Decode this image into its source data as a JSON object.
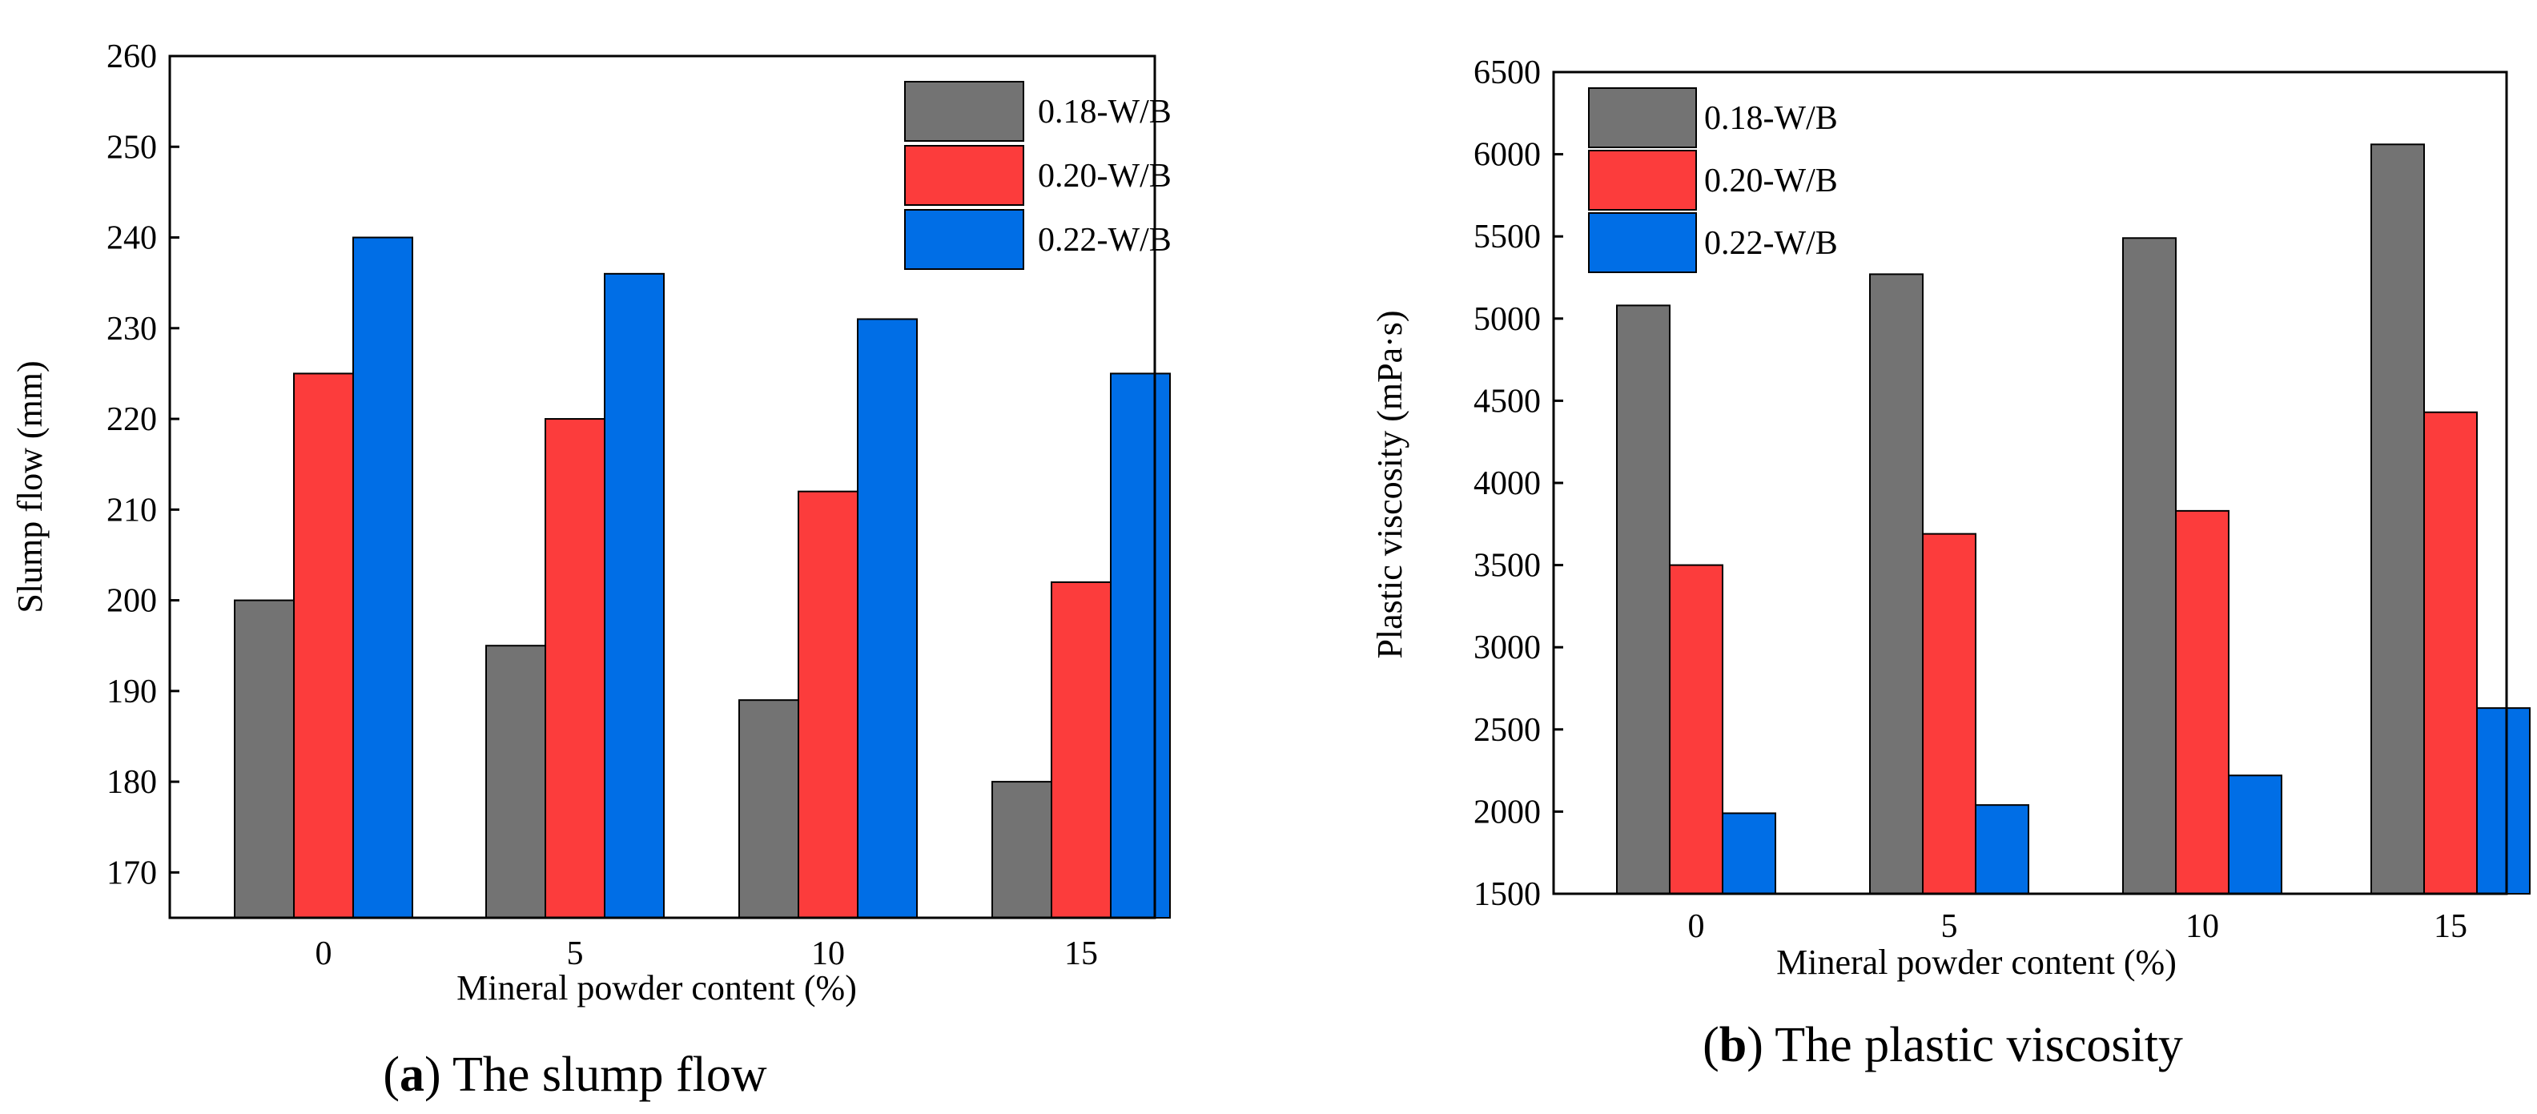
{
  "chart_data": [
    {
      "type": "bar",
      "categories": [
        "0",
        "5",
        "10",
        "15"
      ],
      "series": [
        {
          "name": "0.18-W/B",
          "color": "#737373",
          "values": [
            200,
            195,
            189,
            180
          ]
        },
        {
          "name": "0.20-W/B",
          "color": "#fc3c3c",
          "values": [
            225,
            220,
            212,
            202
          ]
        },
        {
          "name": "0.22-W/B",
          "color": "#006ee6",
          "values": [
            240,
            236,
            231,
            225
          ]
        }
      ],
      "xlabel": "Mineral powder content (%)",
      "ylabel": "Slump flow  (mm)",
      "ylim": [
        165,
        260
      ],
      "yticks": [
        170,
        180,
        190,
        200,
        210,
        220,
        230,
        240,
        250,
        260
      ],
      "legend_position": "top-right",
      "caption": {
        "letter": "a",
        "open": "(",
        "close": ")",
        "text": " The slump flow"
      }
    },
    {
      "type": "bar",
      "categories": [
        "0",
        "5",
        "10",
        "15"
      ],
      "series": [
        {
          "name": "0.18-W/B",
          "color": "#737373",
          "values": [
            5080,
            5270,
            5490,
            6060
          ]
        },
        {
          "name": "0.20-W/B",
          "color": "#fc3c3c",
          "values": [
            3500,
            3690,
            3830,
            4430
          ]
        },
        {
          "name": "0.22-W/B",
          "color": "#006ee6",
          "values": [
            1990,
            2040,
            2220,
            2630
          ]
        }
      ],
      "xlabel": "Mineral powder content (%)",
      "ylabel": "Plastic viscosity (mPa·s)",
      "ylim": [
        1500,
        6500
      ],
      "yticks": [
        1500,
        2000,
        2500,
        3000,
        3500,
        4000,
        4500,
        5000,
        5500,
        6000,
        6500
      ],
      "legend_position": "top-left",
      "caption": {
        "letter": "b",
        "open": "(",
        "close": ")",
        "text": " The plastic viscosity"
      }
    }
  ]
}
